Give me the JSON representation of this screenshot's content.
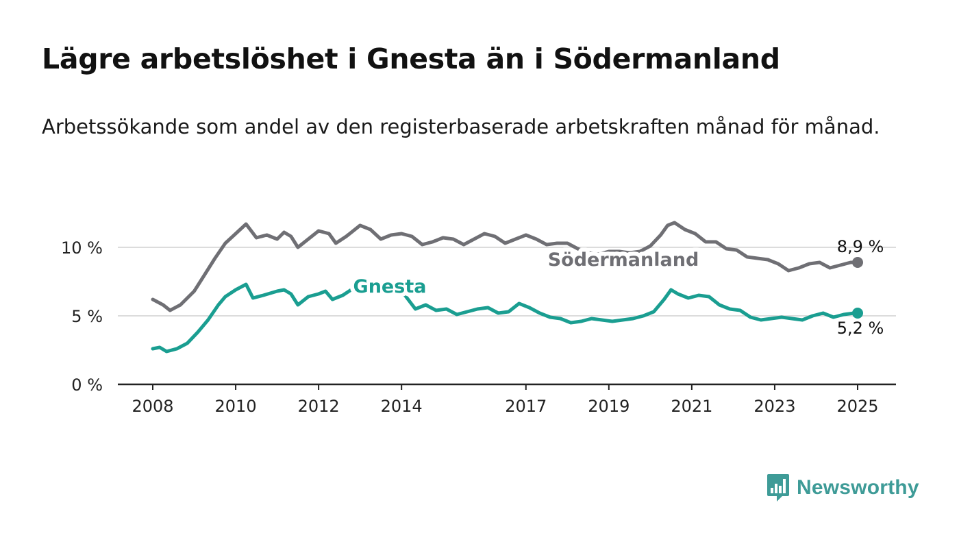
{
  "header": {
    "title": "Lägre arbetslöshet i Gnesta än i Södermanland",
    "subtitle": "Arbetssökande som andel av den registerbaserade arbetskraften månad för månad."
  },
  "chart_data": {
    "type": "line",
    "x_ticks": [
      "2008",
      "2010",
      "2012",
      "2014",
      "2017",
      "2019",
      "2021",
      "2023",
      "2025"
    ],
    "y_ticks": [
      "0 %",
      "5 %",
      "10 %"
    ],
    "ylim": [
      0,
      12
    ],
    "grid": true,
    "legend": "inline labels",
    "series": [
      {
        "name": "Södermanland",
        "color": "#6f6f74",
        "end_label": "8,9 %",
        "points": [
          [
            "2008-01",
            6.2
          ],
          [
            "2008-04",
            5.8
          ],
          [
            "2008-06",
            5.4
          ],
          [
            "2008-09",
            5.8
          ],
          [
            "2009-01",
            6.8
          ],
          [
            "2009-04",
            8.0
          ],
          [
            "2009-07",
            9.2
          ],
          [
            "2009-10",
            10.3
          ],
          [
            "2010-01",
            11.0
          ],
          [
            "2010-04",
            11.7
          ],
          [
            "2010-07",
            10.7
          ],
          [
            "2010-10",
            10.9
          ],
          [
            "2011-01",
            10.6
          ],
          [
            "2011-03",
            11.1
          ],
          [
            "2011-05",
            10.8
          ],
          [
            "2011-07",
            10.0
          ],
          [
            "2011-10",
            10.6
          ],
          [
            "2012-01",
            11.2
          ],
          [
            "2012-04",
            11.0
          ],
          [
            "2012-06",
            10.3
          ],
          [
            "2012-09",
            10.8
          ],
          [
            "2013-01",
            11.6
          ],
          [
            "2013-04",
            11.3
          ],
          [
            "2013-07",
            10.6
          ],
          [
            "2013-10",
            10.9
          ],
          [
            "2014-01",
            11.0
          ],
          [
            "2014-04",
            10.8
          ],
          [
            "2014-07",
            10.2
          ],
          [
            "2014-10",
            10.4
          ],
          [
            "2015-01",
            10.7
          ],
          [
            "2015-04",
            10.6
          ],
          [
            "2015-07",
            10.2
          ],
          [
            "2015-10",
            10.6
          ],
          [
            "2016-01",
            11.0
          ],
          [
            "2016-04",
            10.8
          ],
          [
            "2016-07",
            10.3
          ],
          [
            "2016-10",
            10.6
          ],
          [
            "2017-01",
            10.9
          ],
          [
            "2017-04",
            10.6
          ],
          [
            "2017-07",
            10.2
          ],
          [
            "2017-10",
            10.3
          ],
          [
            "2018-01",
            10.3
          ],
          [
            "2018-04",
            9.9
          ],
          [
            "2018-07",
            9.6
          ],
          [
            "2018-10",
            9.5
          ],
          [
            "2019-01",
            9.7
          ],
          [
            "2019-04",
            9.7
          ],
          [
            "2019-07",
            9.6
          ],
          [
            "2019-10",
            9.7
          ],
          [
            "2020-01",
            10.1
          ],
          [
            "2020-04",
            10.9
          ],
          [
            "2020-06",
            11.6
          ],
          [
            "2020-08",
            11.8
          ],
          [
            "2020-11",
            11.3
          ],
          [
            "2021-02",
            11.0
          ],
          [
            "2021-05",
            10.4
          ],
          [
            "2021-08",
            10.4
          ],
          [
            "2021-11",
            9.9
          ],
          [
            "2022-02",
            9.8
          ],
          [
            "2022-05",
            9.3
          ],
          [
            "2022-08",
            9.2
          ],
          [
            "2022-11",
            9.1
          ],
          [
            "2023-02",
            8.8
          ],
          [
            "2023-05",
            8.3
          ],
          [
            "2023-08",
            8.5
          ],
          [
            "2023-11",
            8.8
          ],
          [
            "2024-02",
            8.9
          ],
          [
            "2024-05",
            8.5
          ],
          [
            "2024-08",
            8.7
          ],
          [
            "2024-11",
            8.9
          ],
          [
            "2025-01",
            8.9
          ]
        ]
      },
      {
        "name": "Gnesta",
        "color": "#1a9e91",
        "end_label": "5,2 %",
        "points": [
          [
            "2008-01",
            2.6
          ],
          [
            "2008-03",
            2.7
          ],
          [
            "2008-05",
            2.4
          ],
          [
            "2008-08",
            2.6
          ],
          [
            "2008-11",
            3.0
          ],
          [
            "2009-02",
            3.8
          ],
          [
            "2009-05",
            4.7
          ],
          [
            "2009-08",
            5.8
          ],
          [
            "2009-10",
            6.4
          ],
          [
            "2010-01",
            6.9
          ],
          [
            "2010-04",
            7.3
          ],
          [
            "2010-06",
            6.3
          ],
          [
            "2010-09",
            6.5
          ],
          [
            "2011-01",
            6.8
          ],
          [
            "2011-03",
            6.9
          ],
          [
            "2011-05",
            6.6
          ],
          [
            "2011-07",
            5.8
          ],
          [
            "2011-10",
            6.4
          ],
          [
            "2012-01",
            6.6
          ],
          [
            "2012-03",
            6.8
          ],
          [
            "2012-05",
            6.2
          ],
          [
            "2012-08",
            6.5
          ],
          [
            "2012-11",
            7.0
          ],
          [
            "2013-02",
            7.2
          ],
          [
            "2013-05",
            6.8
          ],
          [
            "2013-08",
            6.6
          ],
          [
            "2013-11",
            6.7
          ],
          [
            "2014-02",
            6.5
          ],
          [
            "2014-05",
            5.5
          ],
          [
            "2014-08",
            5.8
          ],
          [
            "2014-11",
            5.4
          ],
          [
            "2015-02",
            5.5
          ],
          [
            "2015-05",
            5.1
          ],
          [
            "2015-08",
            5.3
          ],
          [
            "2015-11",
            5.5
          ],
          [
            "2016-02",
            5.6
          ],
          [
            "2016-05",
            5.2
          ],
          [
            "2016-08",
            5.3
          ],
          [
            "2016-11",
            5.9
          ],
          [
            "2017-02",
            5.6
          ],
          [
            "2017-05",
            5.2
          ],
          [
            "2017-08",
            4.9
          ],
          [
            "2017-11",
            4.8
          ],
          [
            "2018-02",
            4.5
          ],
          [
            "2018-05",
            4.6
          ],
          [
            "2018-08",
            4.8
          ],
          [
            "2018-11",
            4.7
          ],
          [
            "2019-02",
            4.6
          ],
          [
            "2019-05",
            4.7
          ],
          [
            "2019-08",
            4.8
          ],
          [
            "2019-11",
            5.0
          ],
          [
            "2020-02",
            5.3
          ],
          [
            "2020-05",
            6.2
          ],
          [
            "2020-07",
            6.9
          ],
          [
            "2020-09",
            6.6
          ],
          [
            "2020-12",
            6.3
          ],
          [
            "2021-03",
            6.5
          ],
          [
            "2021-06",
            6.4
          ],
          [
            "2021-09",
            5.8
          ],
          [
            "2021-12",
            5.5
          ],
          [
            "2022-03",
            5.4
          ],
          [
            "2022-06",
            4.9
          ],
          [
            "2022-09",
            4.7
          ],
          [
            "2022-12",
            4.8
          ],
          [
            "2023-03",
            4.9
          ],
          [
            "2023-06",
            4.8
          ],
          [
            "2023-09",
            4.7
          ],
          [
            "2023-12",
            5.0
          ],
          [
            "2024-03",
            5.2
          ],
          [
            "2024-06",
            4.9
          ],
          [
            "2024-09",
            5.1
          ],
          [
            "2024-12",
            5.2
          ],
          [
            "2025-01",
            5.2
          ]
        ]
      }
    ]
  },
  "branding": {
    "name": "Newsworthy",
    "color": "#3e9b97",
    "icon": "newsworthy-logo-icon"
  }
}
